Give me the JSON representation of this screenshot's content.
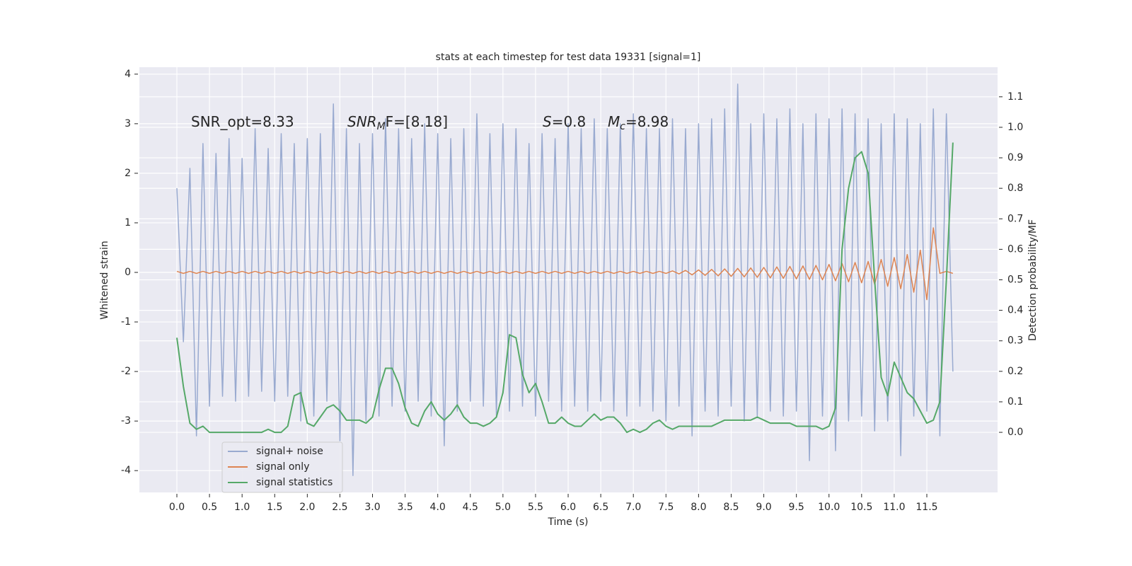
{
  "chart_data": {
    "type": "line",
    "title": "stats at each timestep for test data 19331 [signal=1]",
    "xlabel": "Time (s)",
    "ylabel": "Whitened strain",
    "y2label": "Detection probability/MF",
    "annotations": [
      {
        "main": "SNR_opt=8.33"
      },
      {
        "main": "SNR",
        "sub": "M",
        "rest": "F=[8.18]"
      },
      {
        "main": "S",
        "rest": "=0.8"
      },
      {
        "main": "M",
        "sub": "c",
        "rest": "=8.98"
      }
    ],
    "x": [
      0,
      0.1,
      0.2,
      0.3,
      0.4,
      0.5,
      0.6,
      0.7,
      0.8,
      0.9,
      1,
      1.1,
      1.2,
      1.3,
      1.4,
      1.5,
      1.6,
      1.7,
      1.8,
      1.9,
      2,
      2.1,
      2.2,
      2.3,
      2.4,
      2.5,
      2.6,
      2.7,
      2.8,
      2.9,
      3,
      3.1,
      3.2,
      3.3,
      3.4,
      3.5,
      3.6,
      3.7,
      3.8,
      3.9,
      4,
      4.1,
      4.2,
      4.3,
      4.4,
      4.5,
      4.6,
      4.7,
      4.8,
      4.9,
      5,
      5.1,
      5.2,
      5.3,
      5.4,
      5.5,
      5.6,
      5.7,
      5.8,
      5.9,
      6,
      6.1,
      6.2,
      6.3,
      6.4,
      6.5,
      6.6,
      6.7,
      6.8,
      6.9,
      7,
      7.1,
      7.2,
      7.3,
      7.4,
      7.5,
      7.6,
      7.7,
      7.8,
      7.9,
      8,
      8.1,
      8.2,
      8.3,
      8.4,
      8.5,
      8.6,
      8.7,
      8.8,
      8.9,
      9,
      9.1,
      9.2,
      9.3,
      9.4,
      9.5,
      9.6,
      9.7,
      9.8,
      9.9,
      10,
      10.1,
      10.2,
      10.3,
      10.4,
      10.5,
      10.6,
      10.7,
      10.8,
      10.9,
      11,
      11.1,
      11.2,
      11.3,
      11.4,
      11.5,
      11.6,
      11.7,
      11.8,
      11.9
    ],
    "series": [
      {
        "name": "signal+ noise",
        "color": "#99aad0",
        "values": [
          1.7,
          -1.4,
          2.1,
          -3.3,
          2.6,
          -2.7,
          2.4,
          -2.5,
          2.7,
          -2.6,
          2.3,
          -2.5,
          2.9,
          -2.4,
          2.5,
          -2.6,
          2.8,
          -2.5,
          2.6,
          -3.0,
          2.7,
          -2.9,
          2.8,
          -2.6,
          3.4,
          -3.4,
          2.9,
          -4.1,
          2.6,
          -3.0,
          2.8,
          -2.9,
          3.1,
          -2.7,
          2.9,
          -2.8,
          2.7,
          -2.6,
          3.0,
          -2.9,
          2.8,
          -3.5,
          2.7,
          -2.8,
          2.9,
          -2.6,
          3.2,
          -2.7,
          2.8,
          -2.9,
          3.0,
          -2.8,
          2.9,
          -2.7,
          2.6,
          -2.9,
          2.8,
          -2.6,
          2.7,
          -2.8,
          3.0,
          -2.7,
          2.9,
          -2.8,
          3.1,
          -2.6,
          2.9,
          -2.8,
          3.0,
          -2.9,
          3.2,
          -2.7,
          2.9,
          -2.8,
          2.9,
          -3.0,
          3.1,
          -2.7,
          2.9,
          -3.3,
          3.0,
          -2.8,
          3.1,
          -2.9,
          3.3,
          -2.7,
          3.8,
          -3.0,
          3.0,
          -2.9,
          3.2,
          -2.8,
          3.1,
          -2.9,
          3.3,
          -2.8,
          3.0,
          -3.8,
          3.2,
          -2.9,
          3.1,
          -3.6,
          3.3,
          -3.0,
          3.2,
          -2.9,
          3.1,
          -3.2,
          3.0,
          -3.0,
          3.2,
          -3.7,
          3.1,
          -2.9,
          3.0,
          -2.8,
          3.3,
          -3.3,
          3.2,
          -2.0
        ]
      },
      {
        "name": "signal only",
        "color": "#dd8452",
        "values": [
          0.02,
          -0.02,
          0.02,
          -0.02,
          0.02,
          -0.02,
          0.02,
          -0.02,
          0.02,
          -0.02,
          0.02,
          -0.02,
          0.02,
          -0.02,
          0.02,
          -0.02,
          0.02,
          -0.02,
          0.02,
          -0.02,
          0.02,
          -0.02,
          0.02,
          -0.02,
          0.02,
          -0.02,
          0.02,
          -0.02,
          0.02,
          -0.02,
          0.02,
          -0.02,
          0.02,
          -0.02,
          0.02,
          -0.02,
          0.02,
          -0.02,
          0.02,
          -0.02,
          0.02,
          -0.02,
          0.02,
          -0.02,
          0.02,
          -0.02,
          0.02,
          -0.02,
          0.02,
          -0.02,
          0.02,
          -0.02,
          0.02,
          -0.02,
          0.02,
          -0.02,
          0.02,
          -0.02,
          0.02,
          -0.02,
          0.02,
          -0.02,
          0.02,
          -0.02,
          0.02,
          -0.02,
          0.02,
          -0.02,
          0.02,
          -0.02,
          0.02,
          -0.02,
          0.02,
          -0.02,
          0.02,
          -0.02,
          0.03,
          -0.03,
          0.04,
          -0.05,
          0.05,
          -0.06,
          0.06,
          -0.07,
          0.07,
          -0.08,
          0.08,
          -0.09,
          0.09,
          -0.1,
          0.1,
          -0.11,
          0.11,
          -0.12,
          0.12,
          -0.13,
          0.13,
          -0.14,
          0.14,
          -0.15,
          0.16,
          -0.17,
          0.18,
          -0.19,
          0.2,
          -0.21,
          0.22,
          -0.24,
          0.26,
          -0.28,
          0.3,
          -0.33,
          0.36,
          -0.4,
          0.45,
          -0.55,
          0.9,
          -0.02,
          0.02,
          -0.02
        ]
      },
      {
        "name": "signal statistics",
        "color": "#55a868",
        "axis": "y2",
        "values": [
          0.31,
          0.15,
          0.03,
          0.01,
          0.02,
          0.0,
          0.0,
          0.0,
          0.0,
          0.0,
          0.0,
          0.0,
          0.0,
          0.0,
          0.01,
          0.0,
          0.0,
          0.02,
          0.12,
          0.13,
          0.03,
          0.02,
          0.05,
          0.08,
          0.09,
          0.07,
          0.04,
          0.04,
          0.04,
          0.03,
          0.05,
          0.14,
          0.21,
          0.21,
          0.16,
          0.08,
          0.03,
          0.02,
          0.07,
          0.1,
          0.06,
          0.04,
          0.06,
          0.09,
          0.05,
          0.03,
          0.03,
          0.02,
          0.03,
          0.05,
          0.13,
          0.32,
          0.31,
          0.19,
          0.13,
          0.16,
          0.1,
          0.03,
          0.03,
          0.05,
          0.03,
          0.02,
          0.02,
          0.04,
          0.06,
          0.04,
          0.05,
          0.05,
          0.03,
          0.0,
          0.01,
          0.0,
          0.01,
          0.03,
          0.04,
          0.02,
          0.01,
          0.02,
          0.02,
          0.02,
          0.02,
          0.02,
          0.02,
          0.03,
          0.04,
          0.04,
          0.04,
          0.04,
          0.04,
          0.05,
          0.04,
          0.03,
          0.03,
          0.03,
          0.03,
          0.02,
          0.02,
          0.02,
          0.02,
          0.01,
          0.02,
          0.08,
          0.6,
          0.8,
          0.9,
          0.92,
          0.85,
          0.5,
          0.18,
          0.12,
          0.23,
          0.18,
          0.13,
          0.11,
          0.07,
          0.03,
          0.04,
          0.1,
          0.5,
          0.95
        ]
      }
    ],
    "xlim": [
      -0.575,
      12.585
    ],
    "xticks": [
      {
        "value": 0,
        "label": "0.0"
      },
      0.5,
      {
        "value": 1,
        "label": "1.0"
      },
      1.5,
      {
        "value": 2,
        "label": "2.0"
      },
      2.5,
      {
        "value": 3,
        "label": "3.0"
      },
      3.5,
      {
        "value": 4,
        "label": "4.0"
      },
      4.5,
      {
        "value": 5,
        "label": "5.0"
      },
      5.5,
      {
        "value": 6,
        "label": "6.0"
      },
      6.5,
      {
        "value": 7,
        "label": "7.0"
      },
      7.5,
      {
        "value": 8,
        "label": "8.0"
      },
      8.5,
      {
        "value": 9,
        "label": "9.0"
      },
      9.5,
      {
        "value": 10,
        "label": "10.0"
      },
      10.5,
      {
        "value": 11,
        "label": "11.0"
      },
      11.5
    ],
    "ylim": [
      -4.44,
      4.14
    ],
    "yticks": [
      -4,
      -3,
      -2,
      -1,
      0,
      1,
      2,
      3,
      4
    ],
    "y2lim": [
      -0.197,
      1.197
    ],
    "y2ticks": [
      {
        "value": 0,
        "label": "0.0"
      },
      0.1,
      0.2,
      0.3,
      0.4,
      0.5,
      0.6,
      0.7,
      0.8,
      0.9,
      {
        "value": 1,
        "label": "1.0"
      },
      1.1
    ],
    "grid": true,
    "legend": "lower left"
  }
}
